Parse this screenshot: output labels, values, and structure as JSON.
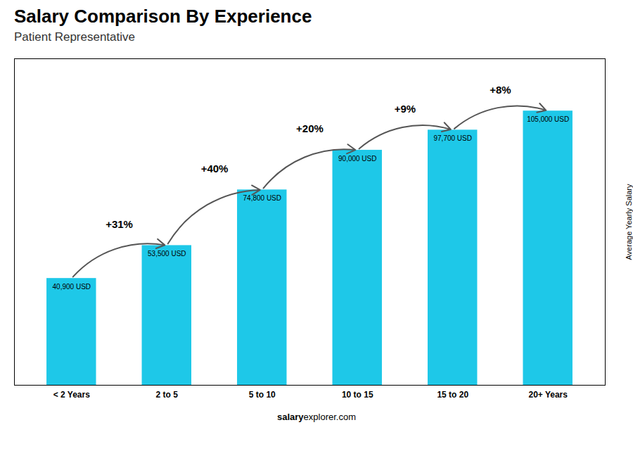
{
  "chart_data": {
    "type": "bar",
    "title": "Salary Comparison By Experience",
    "subtitle": "Patient Representative",
    "categories": [
      "< 2 Years",
      "2 to 5",
      "5 to 10",
      "10 to 15",
      "15 to 20",
      "20+ Years"
    ],
    "values": [
      40900,
      53500,
      74800,
      90000,
      97700,
      105000
    ],
    "value_labels": [
      "40,900 USD",
      "53,500 USD",
      "74,800 USD",
      "90,000 USD",
      "97,700 USD",
      "105,000 USD"
    ],
    "data_labels": true,
    "annotations": [
      "+31%",
      "+40%",
      "+20%",
      "+9%",
      "+8%"
    ],
    "color": "#1ec8e8",
    "ylabel": "Average Yearly Salary",
    "ylim": [
      0,
      125000
    ],
    "tick_labels": "x",
    "grid": false,
    "footer": [
      "salary",
      "explorer.com"
    ]
  }
}
